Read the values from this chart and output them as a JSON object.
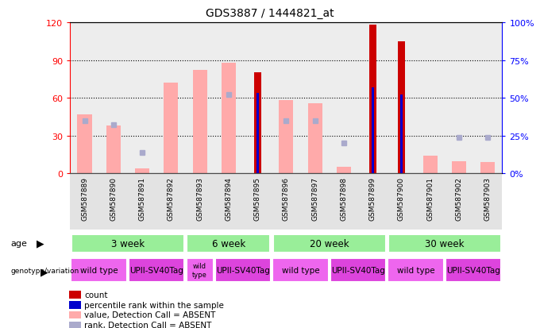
{
  "title": "GDS3887 / 1444821_at",
  "samples": [
    "GSM587889",
    "GSM587890",
    "GSM587891",
    "GSM587892",
    "GSM587893",
    "GSM587894",
    "GSM587895",
    "GSM587896",
    "GSM587897",
    "GSM587898",
    "GSM587899",
    "GSM587900",
    "GSM587901",
    "GSM587902",
    "GSM587903"
  ],
  "count_values": [
    null,
    null,
    null,
    null,
    null,
    null,
    80,
    null,
    null,
    null,
    118,
    105,
    null,
    null,
    null
  ],
  "rank_values_pct": [
    null,
    null,
    null,
    null,
    null,
    null,
    53,
    null,
    null,
    null,
    57,
    52,
    null,
    null,
    null
  ],
  "value_absent": [
    47,
    38,
    4,
    72,
    82,
    88,
    null,
    58,
    56,
    5,
    null,
    null,
    14,
    10,
    9
  ],
  "rank_absent_pct": [
    35,
    32,
    14,
    null,
    null,
    52,
    null,
    35,
    35,
    20,
    null,
    null,
    null,
    24,
    24
  ],
  "ylim_left": [
    0,
    120
  ],
  "ylim_right": [
    0,
    100
  ],
  "yticks_left": [
    0,
    30,
    60,
    90,
    120
  ],
  "yticks_right": [
    0,
    25,
    50,
    75,
    100
  ],
  "ytick_labels_left": [
    "0",
    "30",
    "60",
    "90",
    "120"
  ],
  "ytick_labels_right": [
    "0%",
    "25%",
    "50%",
    "75%",
    "100%"
  ],
  "color_count": "#cc0000",
  "color_rank": "#0000cc",
  "color_value_absent": "#ffaaaa",
  "color_rank_absent": "#aaaacc",
  "age_groups": [
    {
      "label": "3 week",
      "start": 0,
      "end": 4
    },
    {
      "label": "6 week",
      "start": 4,
      "end": 7
    },
    {
      "label": "20 week",
      "start": 7,
      "end": 11
    },
    {
      "label": "30 week",
      "start": 11,
      "end": 15
    }
  ],
  "genotype_groups": [
    {
      "label": "wild type",
      "start": 0,
      "end": 2,
      "color": "#ee66ee"
    },
    {
      "label": "UPII-SV40Tag",
      "start": 2,
      "end": 4,
      "color": "#dd44dd"
    },
    {
      "label": "wild\ntype",
      "start": 4,
      "end": 5,
      "color": "#ee66ee"
    },
    {
      "label": "UPII-SV40Tag",
      "start": 5,
      "end": 7,
      "color": "#dd44dd"
    },
    {
      "label": "wild type",
      "start": 7,
      "end": 9,
      "color": "#ee66ee"
    },
    {
      "label": "UPII-SV40Tag",
      "start": 9,
      "end": 11,
      "color": "#dd44dd"
    },
    {
      "label": "wild type",
      "start": 11,
      "end": 13,
      "color": "#ee66ee"
    },
    {
      "label": "UPII-SV40Tag",
      "start": 13,
      "end": 15,
      "color": "#dd44dd"
    }
  ],
  "legend_items": [
    {
      "label": "count",
      "color": "#cc0000"
    },
    {
      "label": "percentile rank within the sample",
      "color": "#0000cc"
    },
    {
      "label": "value, Detection Call = ABSENT",
      "color": "#ffaaaa"
    },
    {
      "label": "rank, Detection Call = ABSENT",
      "color": "#aaaacc"
    }
  ],
  "age_color": "#99ee99",
  "sample_bg_color": "#bbbbbb",
  "fig_width": 6.8,
  "fig_height": 4.14,
  "dpi": 100
}
